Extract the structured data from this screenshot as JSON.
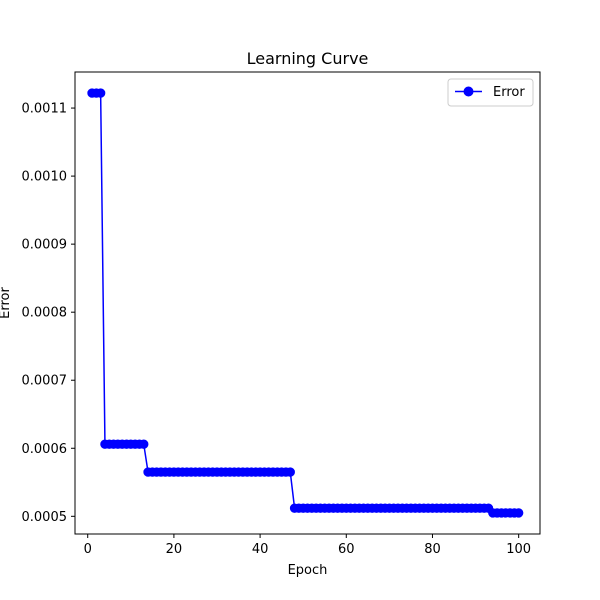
{
  "chart_data": {
    "type": "line",
    "title": "Learning Curve",
    "xlabel": "Epoch",
    "ylabel": "Error",
    "xlim": [
      -2.95,
      104.95
    ],
    "ylim": [
      0.000474,
      0.001153
    ],
    "grid": false,
    "legend_position": "top-right",
    "x_ticks": [
      0,
      20,
      40,
      60,
      80,
      100
    ],
    "x_tick_labels": [
      "0",
      "20",
      "40",
      "60",
      "80",
      "100"
    ],
    "y_ticks": [
      0.0005,
      0.0006,
      0.0007,
      0.0008,
      0.0009,
      0.001,
      0.0011
    ],
    "y_tick_labels": [
      "0.0005",
      "0.0006",
      "0.0007",
      "0.0008",
      "0.0009",
      "0.0010",
      "0.0011"
    ],
    "series": [
      {
        "name": "Error",
        "color": "#0000ff",
        "marker": "circle",
        "segments": [
          {
            "from": 1,
            "to": 3,
            "value": 0.001122
          },
          {
            "from": 4,
            "to": 13,
            "value": 0.000606
          },
          {
            "from": 14,
            "to": 47,
            "value": 0.000565
          },
          {
            "from": 48,
            "to": 93,
            "value": 0.000512
          },
          {
            "from": 94,
            "to": 100,
            "value": 0.000505
          }
        ]
      }
    ]
  }
}
